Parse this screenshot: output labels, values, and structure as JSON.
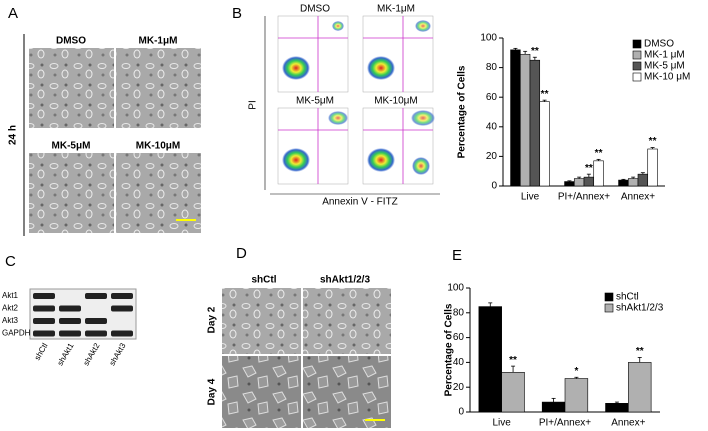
{
  "panel_a": {
    "label": "A",
    "time": "24 h",
    "conditions": [
      "DMSO",
      "MK-1μM",
      "MK-5μM",
      "MK-10μM"
    ]
  },
  "panel_b": {
    "label": "B",
    "plot_titles": [
      "DMSO",
      "MK-1μM",
      "MK-5μM",
      "MK-10μM"
    ],
    "y_label": "PI",
    "x_label": "Annexin V - FITZ"
  },
  "panel_c": {
    "label": "C",
    "rows": [
      "Akt1",
      "Akt2",
      "Akt3",
      "GAPDH"
    ],
    "lanes": [
      "shCtl",
      "shAkt1",
      "shAkt2",
      "shAkt3"
    ]
  },
  "panel_d": {
    "label": "D",
    "columns": [
      "shCtl",
      "shAkt1/2/3"
    ],
    "rows": [
      "Day 2",
      "Day 4"
    ]
  },
  "panel_e": {
    "label": "E"
  },
  "chart_data": [
    {
      "type": "bar",
      "y_label": "Percentage of Cells",
      "categories": [
        "Live",
        "PI+/Annex+",
        "Annex+"
      ],
      "series": [
        {
          "name": "DMSO",
          "color": "#000000",
          "values": [
            92,
            3,
            4
          ],
          "errors": [
            1,
            0.5,
            0.5
          ],
          "significance": [
            null,
            null,
            null
          ]
        },
        {
          "name": "MK-1 μM",
          "color": "#b0b0b0",
          "values": [
            89,
            5,
            5
          ],
          "errors": [
            2,
            1,
            1
          ],
          "significance": [
            null,
            null,
            null
          ]
        },
        {
          "name": "MK-5 μM",
          "color": "#555555",
          "values": [
            85,
            6,
            8
          ],
          "errors": [
            2,
            2,
            1
          ],
          "significance": [
            "**",
            "**",
            null
          ]
        },
        {
          "name": "MK-10 μM",
          "color": "#ffffff",
          "values": [
            57,
            17,
            25
          ],
          "errors": [
            1,
            1,
            1
          ],
          "significance": [
            "**",
            "**",
            "**"
          ]
        }
      ],
      "ylim": [
        0,
        100
      ],
      "yticks": [
        0,
        20,
        40,
        60,
        80,
        100
      ],
      "legend": "upper right"
    },
    {
      "type": "bar",
      "y_label": "Percentage of Cells",
      "categories": [
        "Live",
        "PI+/Annex+",
        "Annex+"
      ],
      "series": [
        {
          "name": "shCtl",
          "color": "#000000",
          "values": [
            85,
            8,
            7
          ],
          "errors": [
            3,
            3,
            1
          ],
          "significance": [
            null,
            null,
            null
          ]
        },
        {
          "name": "shAkt1/2/3",
          "color": "#b0b0b0",
          "values": [
            32,
            27,
            40
          ],
          "errors": [
            5,
            1,
            4
          ],
          "significance": [
            "**",
            "*",
            "**"
          ]
        }
      ],
      "ylim": [
        0,
        100
      ],
      "yticks": [
        0,
        20,
        40,
        60,
        80,
        100
      ],
      "legend": "upper right"
    }
  ]
}
